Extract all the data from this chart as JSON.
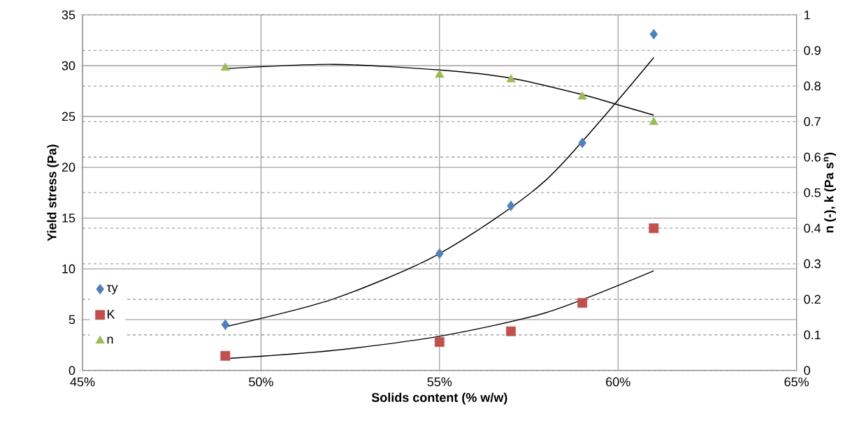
{
  "chart_data": {
    "type": "scatter",
    "xlabel": "Solids content (% w/w)",
    "ylabel": "Yield stress (Pa)",
    "y2label": "n (-), k (Pa s$^{n}$)",
    "xlim": [
      45,
      65
    ],
    "xticks": [
      {
        "value": 45,
        "label": "45%"
      },
      {
        "value": 50,
        "label": "50%"
      },
      {
        "value": 55,
        "label": "55%"
      },
      {
        "value": 60,
        "label": "60%"
      },
      {
        "value": 65,
        "label": "65%"
      }
    ],
    "ylim": [
      0,
      35
    ],
    "yticks": [
      0,
      5,
      10,
      15,
      20,
      25,
      30,
      35
    ],
    "y2lim": [
      0,
      1
    ],
    "y2ticks": [
      0,
      0.1,
      0.2,
      0.3,
      0.4,
      0.5,
      0.6,
      0.7,
      0.8,
      0.9,
      1
    ],
    "grid": true,
    "legend": "bottom left",
    "series": [
      {
        "name": "τy",
        "color": "#4f81bd",
        "marker": "diamond",
        "x": [
          49,
          55,
          57,
          59,
          61
        ],
        "values": [
          4.5,
          11.5,
          16.2,
          22.4,
          33.1
        ]
      },
      {
        "name": "K",
        "color": "#c0504d",
        "marker": "square",
        "axis": "y2",
        "x": [
          49,
          55,
          57,
          59,
          61
        ],
        "values": [
          0.041,
          0.08,
          0.11,
          0.19,
          0.4
        ]
      },
      {
        "name": "n",
        "color": "#9bbb59",
        "marker": "triangle",
        "axis": "y2",
        "x": [
          49,
          55,
          57,
          59,
          61
        ],
        "values": [
          0.851,
          0.831,
          0.818,
          0.77,
          0.698
        ]
      },
      {
        "type": "line",
        "color": "#000000",
        "marker": "none",
        "x": [
          49,
          52,
          55,
          58,
          61
        ],
        "values": [
          4.3,
          7.0,
          11.5,
          18.8,
          30.8
        ]
      },
      {
        "type": "line",
        "color": "#000000",
        "marker": "none",
        "axis": "y2",
        "x": [
          49,
          52,
          55,
          58,
          61
        ],
        "values": [
          0.033,
          0.056,
          0.096,
          0.163,
          0.28
        ]
      },
      {
        "type": "line",
        "color": "#000000",
        "marker": "none",
        "axis": "y2",
        "x": [
          49,
          52,
          55,
          57,
          59,
          60,
          61
        ],
        "values": [
          0.849,
          0.861,
          0.845,
          0.822,
          0.776,
          0.747,
          0.718
        ]
      }
    ]
  }
}
